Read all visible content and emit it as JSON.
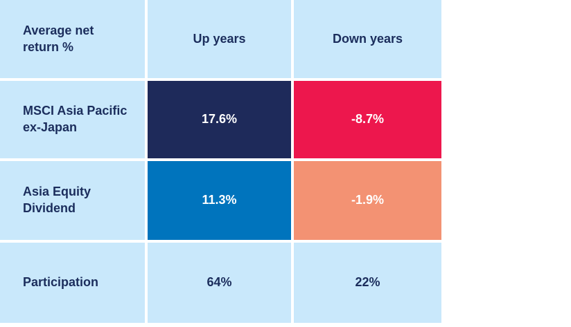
{
  "colors": {
    "page_bg": "#ffffff",
    "cell_light_blue": "#c9e8fb",
    "cell_navy": "#1e2a5a",
    "cell_crimson": "#ed174d",
    "cell_blue": "#0074bd",
    "cell_salmon": "#f39273",
    "text_navy": "#1b2d5c",
    "text_white": "#ffffff",
    "grid_gap": "#ffffff"
  },
  "table": {
    "header": {
      "corner_label": "Average net\nreturn %",
      "col_up": "Up years",
      "col_down": "Down years"
    },
    "rows": [
      {
        "label": "MSCI Asia Pacific\nex-Japan",
        "up": "17.6%",
        "down": "-8.7%"
      },
      {
        "label": "Asia Equity\nDividend",
        "up": "11.3%",
        "down": "-1.9%"
      },
      {
        "label": "Participation",
        "up": "64%",
        "down": "22%"
      }
    ]
  },
  "chart_data": {
    "type": "table",
    "title": "Average net return %",
    "columns": [
      "Average net return %",
      "Up years",
      "Down years"
    ],
    "rows": [
      [
        "MSCI Asia Pacific ex-Japan",
        "17.6%",
        "-8.7%"
      ],
      [
        "Asia Equity Dividend",
        "11.3%",
        "-1.9%"
      ],
      [
        "Participation",
        "64%",
        "22%"
      ]
    ],
    "cell_backgrounds": {
      "MSCI Asia Pacific ex-Japan": {
        "up_years": "#1e2a5a",
        "down_years": "#ed174d"
      },
      "Asia Equity Dividend": {
        "up_years": "#0074bd",
        "down_years": "#f39273"
      },
      "Participation": {
        "up_years": "#c9e8fb",
        "down_years": "#c9e8fb"
      }
    },
    "layout_hints": {
      "header_row_bg": "#c9e8fb",
      "label_column_bg": "#c9e8fb",
      "grid_divider": "white 4px gaps",
      "value_text_on_colored_cells": "#ffffff",
      "value_text_on_light_cells": "#1b2d5c"
    }
  }
}
